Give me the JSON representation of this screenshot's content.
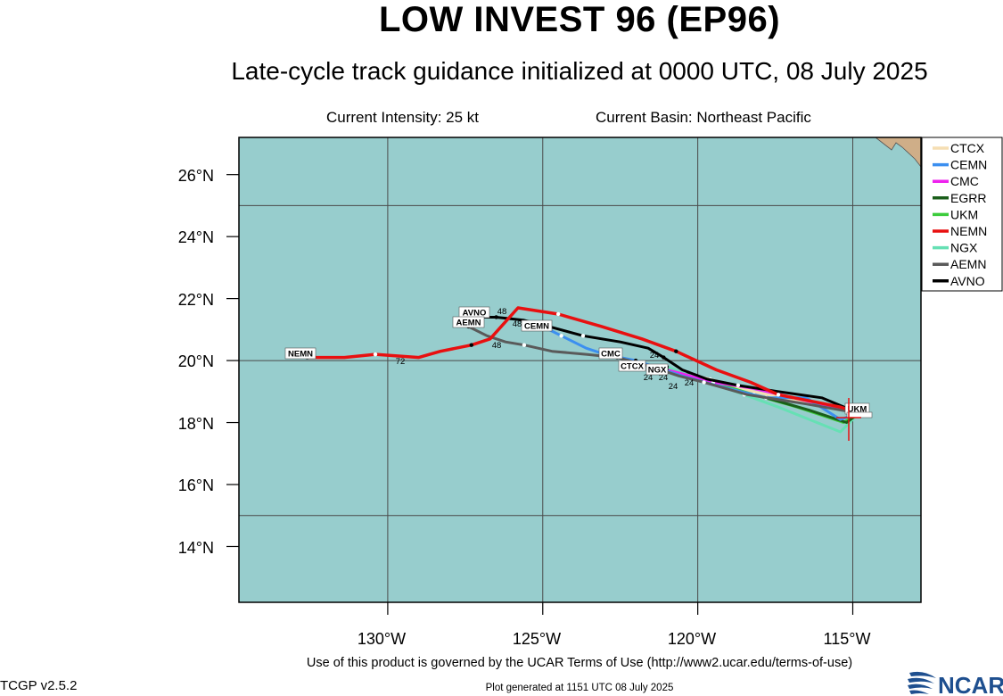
{
  "header": {
    "title": "LOW INVEST 96 (EP96)",
    "subtitle": "Late-cycle track guidance initialized at 0000 UTC, 08 July 2025",
    "intensity": "Current Intensity: 25 kt",
    "basin": "Current Basin: Northeast Pacific"
  },
  "axes": {
    "lat_ticks": [
      "26°N",
      "24°N",
      "22°N",
      "20°N",
      "18°N",
      "16°N",
      "14°N"
    ],
    "lon_ticks": [
      "130°W",
      "125°W",
      "120°W",
      "115°W"
    ]
  },
  "legend": [
    {
      "name": "CTCX",
      "color": "#f5deb3"
    },
    {
      "name": "CEMN",
      "color": "#3c8ff0"
    },
    {
      "name": "CMC",
      "color": "#ee22ee"
    },
    {
      "name": "EGRR",
      "color": "#1a5e1a"
    },
    {
      "name": "UKM",
      "color": "#3ccc3c"
    },
    {
      "name": "NEMN",
      "color": "#e81010"
    },
    {
      "name": "NGX",
      "color": "#66e0b4"
    },
    {
      "name": "AEMN",
      "color": "#5a5a5a"
    },
    {
      "name": "AVNO",
      "color": "#000000"
    }
  ],
  "colors": {
    "ocean": "#97cdcd",
    "land": "#cfae88",
    "grid": "#4a4a4a"
  },
  "map_labels": {
    "nemn": "NEMN",
    "avno": "AVNO",
    "aemn": "AEMN",
    "cemn": "CEMN",
    "cmc": "CMC",
    "ctcx": "CTCX",
    "ngx": "NGX",
    "ukm": "UKM",
    "h72": "72",
    "h48a": "48",
    "h48b": "48",
    "h48c": "48",
    "h24a": "24",
    "h24b": "24",
    "h24c": "24",
    "h24d": "24",
    "h24e": "24"
  },
  "chart_data": {
    "type": "track-map",
    "lon_range": [
      -134.8,
      -112.8
    ],
    "lat_range": [
      12.2,
      27.2
    ],
    "initial_position": {
      "lon": -114.8,
      "lat": 18.3
    },
    "tracks": [
      {
        "name": "NEMN",
        "points": [
          [
            -114.8,
            18.3
          ],
          [
            -115.4,
            18.5
          ],
          [
            -116.4,
            18.7
          ],
          [
            -117.4,
            18.9
          ],
          [
            -118.3,
            19.3
          ],
          [
            -119.4,
            19.7
          ],
          [
            -120.7,
            20.3
          ],
          [
            -121.8,
            20.7
          ],
          [
            -123.1,
            21.1
          ],
          [
            -124.5,
            21.5
          ],
          [
            -125.8,
            21.7
          ],
          [
            -126.7,
            20.7
          ],
          [
            -127.3,
            20.5
          ],
          [
            -128.3,
            20.3
          ],
          [
            -129.0,
            20.1
          ],
          [
            -130.4,
            20.2
          ],
          [
            -131.4,
            20.1
          ],
          [
            -132.6,
            20.1
          ]
        ]
      },
      {
        "name": "AVNO",
        "points": [
          [
            -114.8,
            18.3
          ],
          [
            -116.0,
            18.8
          ],
          [
            -117.4,
            19.0
          ],
          [
            -118.7,
            19.2
          ],
          [
            -119.7,
            19.4
          ],
          [
            -120.5,
            19.7
          ],
          [
            -121.1,
            20.1
          ],
          [
            -121.6,
            20.4
          ],
          [
            -122.5,
            20.6
          ],
          [
            -123.7,
            20.8
          ],
          [
            -124.8,
            21.1
          ],
          [
            -125.6,
            21.3
          ],
          [
            -126.5,
            21.4
          ],
          [
            -127.0,
            21.4
          ]
        ]
      },
      {
        "name": "AEMN",
        "points": [
          [
            -114.8,
            18.3
          ],
          [
            -116.5,
            18.6
          ],
          [
            -118.4,
            18.9
          ],
          [
            -119.8,
            19.3
          ],
          [
            -120.6,
            19.5
          ],
          [
            -121.5,
            19.8
          ],
          [
            -122.6,
            20.1
          ],
          [
            -123.6,
            20.2
          ],
          [
            -124.7,
            20.3
          ],
          [
            -125.6,
            20.5
          ],
          [
            -126.2,
            20.6
          ],
          [
            -126.8,
            20.8
          ],
          [
            -127.4,
            21.1
          ]
        ]
      },
      {
        "name": "CEMN",
        "points": [
          [
            -114.8,
            18.3
          ],
          [
            -115.4,
            18.1
          ],
          [
            -116.5,
            18.8
          ],
          [
            -117.8,
            18.8
          ],
          [
            -119.4,
            19.2
          ],
          [
            -120.5,
            19.5
          ],
          [
            -122.0,
            20.0
          ],
          [
            -123.0,
            20.2
          ],
          [
            -123.6,
            20.4
          ],
          [
            -124.4,
            20.8
          ],
          [
            -125.0,
            21.1
          ]
        ]
      },
      {
        "name": "CMC",
        "points": [
          [
            -114.8,
            18.3
          ],
          [
            -116.5,
            18.7
          ],
          [
            -118.2,
            19.1
          ],
          [
            -119.5,
            19.3
          ],
          [
            -120.6,
            19.6
          ],
          [
            -121.0,
            19.7
          ]
        ]
      },
      {
        "name": "CTCX",
        "points": [
          [
            -114.8,
            18.3
          ],
          [
            -116.3,
            18.6
          ],
          [
            -118.2,
            19.0
          ],
          [
            -119.6,
            19.4
          ],
          [
            -120.6,
            19.6
          ],
          [
            -121.4,
            19.8
          ],
          [
            -122.2,
            20.0
          ]
        ]
      },
      {
        "name": "NGX",
        "points": [
          [
            -114.8,
            18.3
          ],
          [
            -115.4,
            17.7
          ],
          [
            -117.4,
            18.5
          ],
          [
            -118.5,
            18.9
          ],
          [
            -119.6,
            19.3
          ],
          [
            -120.5,
            19.6
          ],
          [
            -121.0,
            19.8
          ]
        ]
      },
      {
        "name": "UKM",
        "points": [
          [
            -114.8,
            18.3
          ],
          [
            -115.3,
            18.0
          ],
          [
            -116.8,
            18.5
          ],
          [
            -118.2,
            18.9
          ],
          [
            -119.5,
            19.3
          ],
          [
            -120.3,
            19.6
          ]
        ]
      },
      {
        "name": "EGRR",
        "points": [
          [
            -114.8,
            18.3
          ],
          [
            -115.2,
            18.0
          ],
          [
            -116.4,
            18.4
          ],
          [
            -117.8,
            18.8
          ]
        ]
      }
    ]
  },
  "footer": {
    "terms": "Use of this product is governed by the UCAR Terms of Use (http://www2.ucar.edu/terms-of-use)",
    "version": "TCGP v2.5.2",
    "generated": "Plot generated at 1151 UTC   08 July 2025",
    "logo_text": "NCAR"
  }
}
